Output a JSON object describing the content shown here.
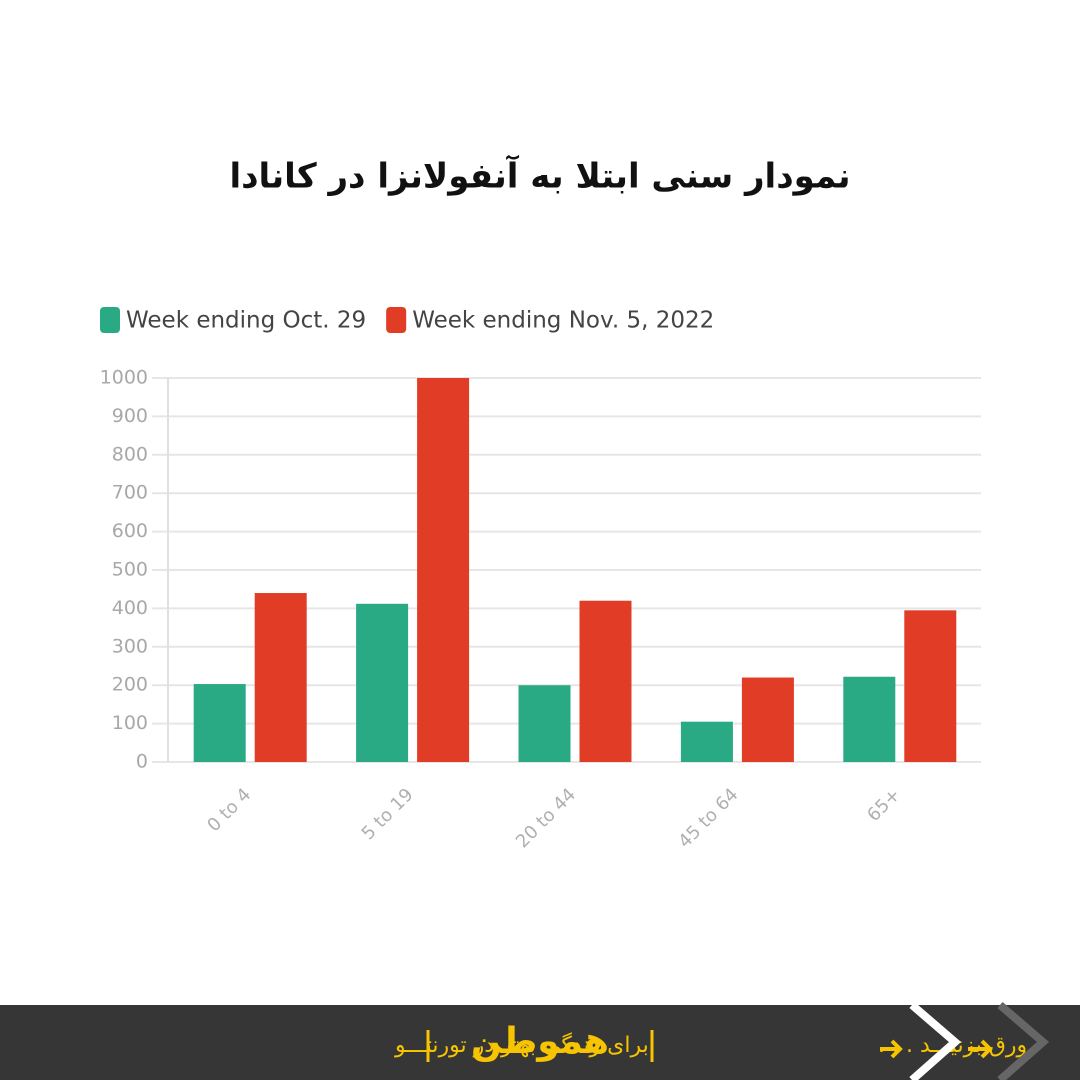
{
  "chart_data": {
    "type": "bar",
    "title": "نمودار سنی ابتلا به آنفولانزا در کانادا",
    "categories": [
      "0 to 4",
      "5 to 19",
      "20 to 44",
      "45 to 64",
      "65+"
    ],
    "series": [
      {
        "name": "Week ending Oct. 29",
        "color": "#2aaa84",
        "values": [
          203,
          412,
          200,
          105,
          222
        ]
      },
      {
        "name": "Week ending Nov. 5, 2022",
        "color": "#e03c26",
        "values": [
          440,
          1000,
          420,
          220,
          395
        ]
      }
    ],
    "ylim": [
      0,
      1000
    ],
    "yticks": [
      0,
      100,
      200,
      300,
      400,
      500,
      600,
      700,
      800,
      900,
      1000
    ],
    "grid": true
  },
  "footer": {
    "tagline": "برای زندگی بهتر در تورنتـــو",
    "brand": "هموطن",
    "swipe": "ورق بزنیـــد . . ."
  }
}
